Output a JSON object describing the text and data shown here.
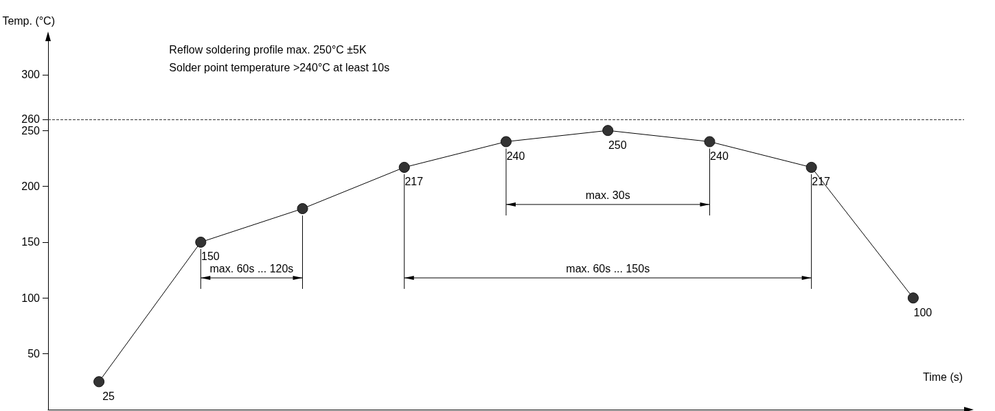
{
  "chart_data": {
    "type": "line",
    "xlabel": "Time (s)",
    "ylabel": "Temp. (°C)",
    "categories": [
      null,
      null,
      null,
      null,
      null,
      null,
      null,
      null,
      null
    ],
    "series": [
      {
        "color": "#333333",
        "values": [
          25,
          150,
          180,
          217,
          240,
          250,
          240,
          217,
          100
        ],
        "value_labels": [
          "25",
          "150",
          null,
          "217",
          "240",
          "250",
          "240",
          "217",
          "100"
        ]
      }
    ],
    "ylim": [
      0,
      330
    ],
    "yticks": [
      50,
      100,
      150,
      200,
      250,
      260,
      300
    ],
    "ref_lines": [
      {
        "axis": "y",
        "value": 260,
        "line_style": "dashed",
        "color": "#333333"
      }
    ],
    "annotations": [
      "Reflow soldering profile max. 250°C ±5K",
      "Solder point temperature >240°C at least 10s",
      "max. 60s ... 120s",
      "max. 60s ... 150s",
      "max. 30s"
    ],
    "marker": "circle",
    "line_style": "solid",
    "grid": false,
    "tick_labels": "y"
  }
}
